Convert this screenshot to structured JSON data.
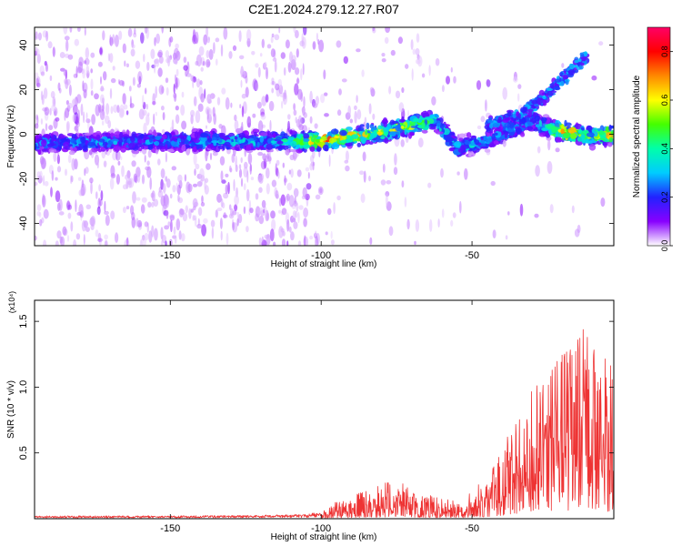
{
  "page": {
    "title": "C2E1.2024.279.12.27.R07"
  },
  "chart_data": [
    {
      "type": "heatmap",
      "xlabel": "Height of straight line (km)",
      "ylabel": "Frequency (Hz)",
      "xlim": [
        -195,
        -3
      ],
      "ylim": [
        -50,
        48
      ],
      "xticks": [
        -150,
        -100,
        -50
      ],
      "yticks": [
        -40,
        -20,
        0,
        20,
        40
      ],
      "xtick_labels": [
        "-150",
        "-100",
        "-50"
      ],
      "ytick_labels": [
        "-40",
        "-20",
        "0",
        "20",
        "40"
      ],
      "colorbar": {
        "label": "Normalized spectral amplitude",
        "range": [
          0,
          0.9
        ],
        "ticks": [
          0.0,
          0.2,
          0.4,
          0.6,
          0.8
        ],
        "tick_labels": [
          "0.0",
          "0.2",
          "0.4",
          "0.6",
          "0.8"
        ],
        "colors": [
          "#ffffff",
          "#8800ff",
          "#2222ff",
          "#00ccff",
          "#00ffaa",
          "#44ff00",
          "#ffff00",
          "#ff8800",
          "#ff0000",
          "#ff0066"
        ]
      },
      "ridge": [
        {
          "x": -195,
          "freq": -4,
          "amp": 0.3
        },
        {
          "x": -150,
          "freq": -3,
          "amp": 0.3
        },
        {
          "x": -110,
          "freq": -3,
          "amp": 0.4
        },
        {
          "x": -100,
          "freq": -3,
          "amp": 0.8
        },
        {
          "x": -90,
          "freq": -1,
          "amp": 0.7
        },
        {
          "x": -80,
          "freq": 1,
          "amp": 0.6
        },
        {
          "x": -70,
          "freq": 4,
          "amp": 0.6
        },
        {
          "x": -62,
          "freq": 6,
          "amp": 0.4
        },
        {
          "x": -55,
          "freq": -6,
          "amp": 0.4
        },
        {
          "x": -45,
          "freq": -3,
          "amp": 0.3
        },
        {
          "x": -30,
          "freq": 6,
          "amp": 0.3
        },
        {
          "x": -25,
          "freq": 3,
          "amp": 0.4
        },
        {
          "x": -20,
          "freq": 1,
          "amp": 0.8
        },
        {
          "x": -10,
          "freq": -1,
          "amp": 0.5
        },
        {
          "x": -3,
          "freq": 0,
          "amp": 0.8
        }
      ],
      "branch": [
        {
          "x": -45,
          "freq": 4
        },
        {
          "x": -35,
          "freq": 8
        },
        {
          "x": -28,
          "freq": 15
        },
        {
          "x": -20,
          "freq": 25
        },
        {
          "x": -12,
          "freq": 35
        }
      ]
    },
    {
      "type": "line",
      "xlabel": "Height of straight line (km)",
      "ylabel": "SNR (10 * v/v)",
      "y_multiplier": "(x10⁴)",
      "xlim": [
        -195,
        -3
      ],
      "ylim": [
        0,
        16600
      ],
      "xticks": [
        -150,
        -100,
        -50
      ],
      "yticks": [
        5000,
        10000,
        15000
      ],
      "xtick_labels": [
        "-150",
        "-100",
        "-50"
      ],
      "ytick_labels": [
        "0.5",
        "1.0",
        "1.5"
      ],
      "color": "#ee3333",
      "envelope": {
        "x": [
          -195,
          -150,
          -120,
          -105,
          -100,
          -95,
          -85,
          -75,
          -70,
          -62,
          -55,
          -50,
          -45,
          -40,
          -35,
          -30,
          -25,
          -20,
          -15,
          -10,
          -5,
          -3
        ],
        "y": [
          200,
          200,
          250,
          300,
          500,
          1200,
          2000,
          2800,
          2000,
          1500,
          1200,
          2000,
          3000,
          5000,
          7500,
          9000,
          10000,
          12000,
          13000,
          14000,
          11000,
          12000
        ]
      }
    }
  ]
}
